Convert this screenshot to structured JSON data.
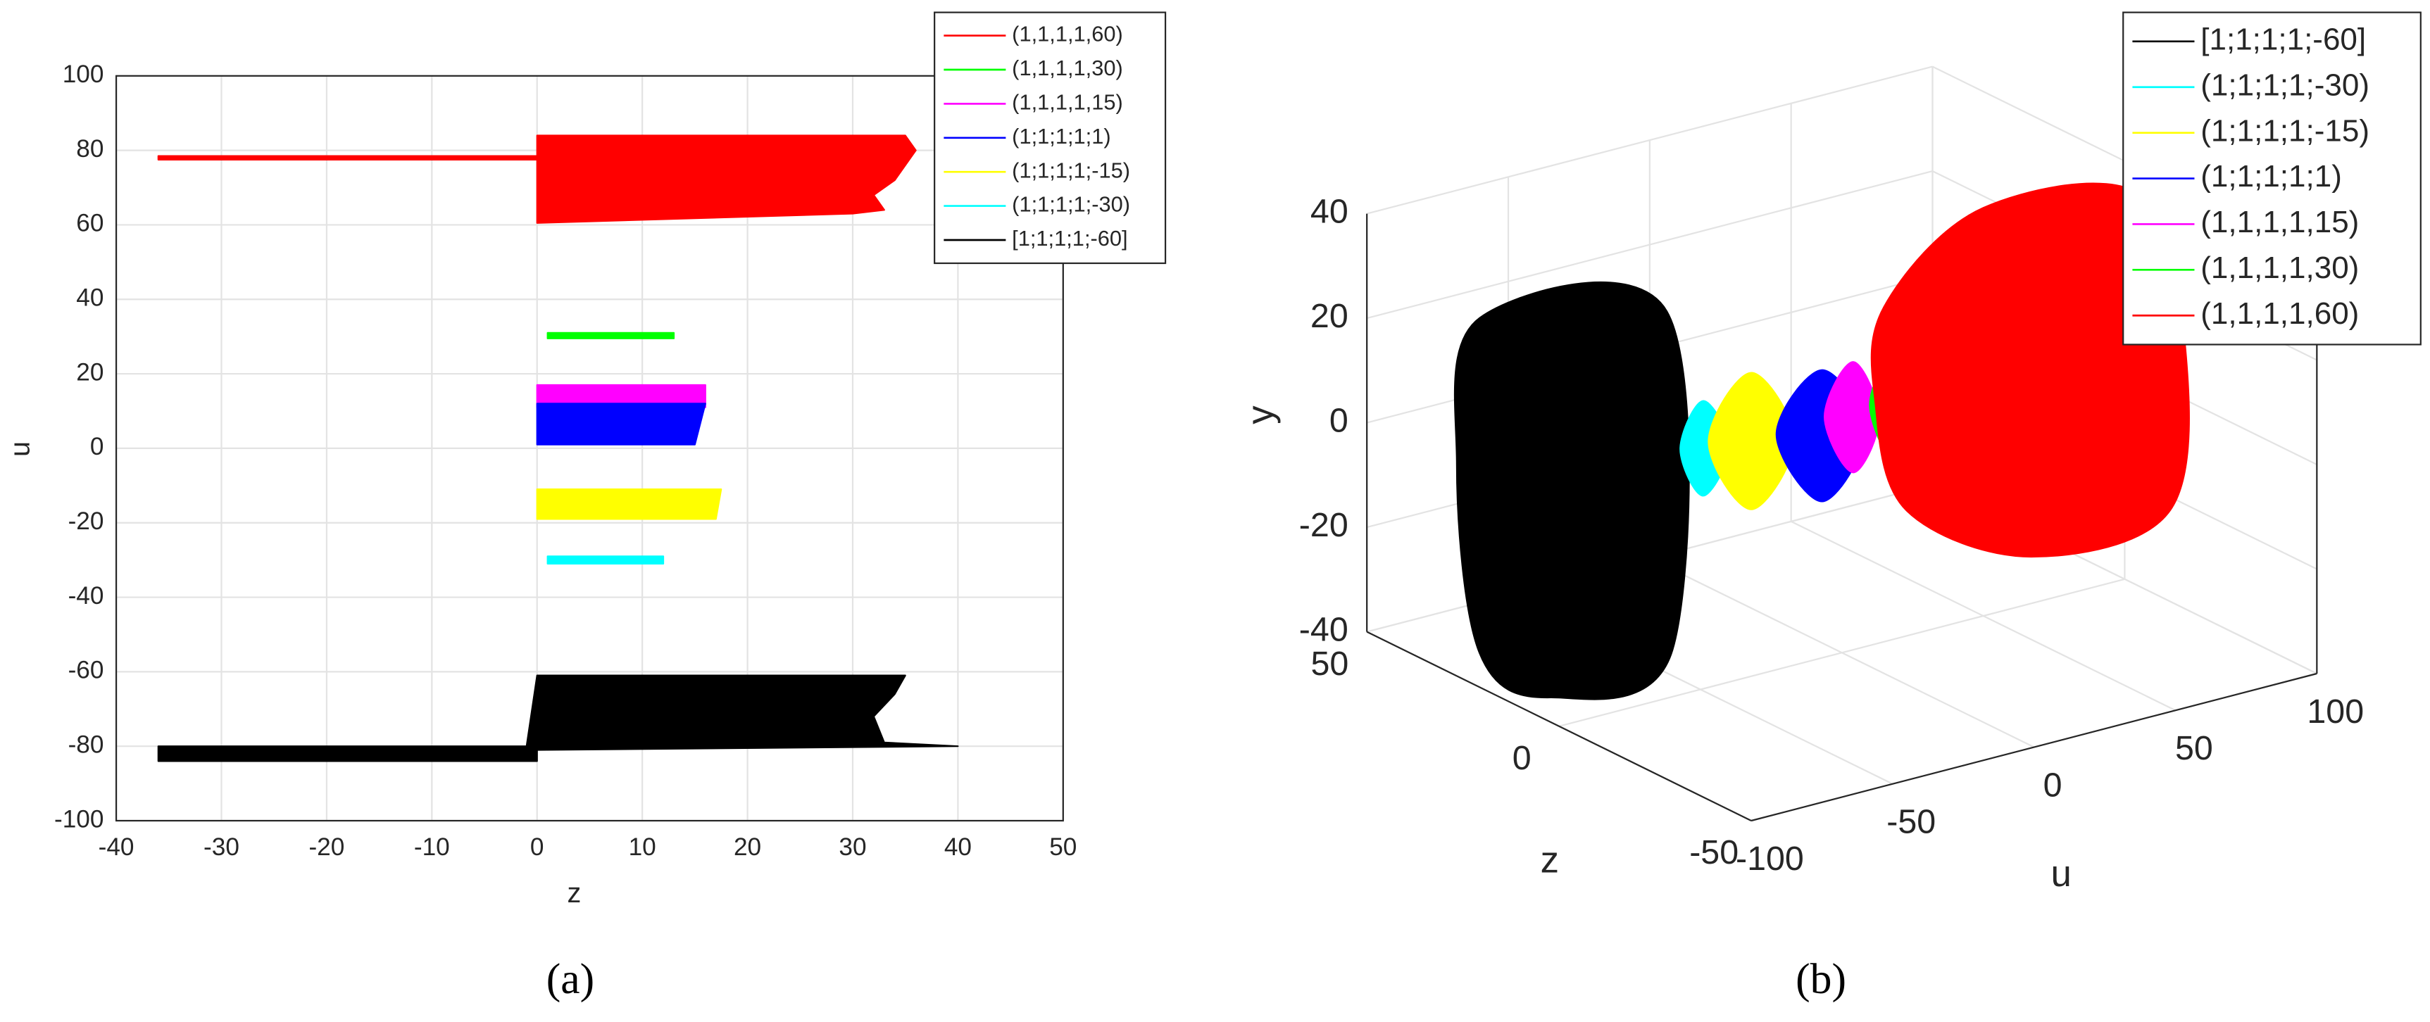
{
  "chart_data": [
    {
      "type": "line",
      "fill": true,
      "grid": true,
      "caption": "(a)",
      "xlabel": "z",
      "ylabel": "u",
      "xlim": [
        -40,
        50
      ],
      "xticks": [
        -40,
        -30,
        -20,
        -10,
        0,
        10,
        20,
        30,
        40,
        50
      ],
      "ylim": [
        -100,
        100
      ],
      "yticks": [
        -100,
        -80,
        -60,
        -40,
        -20,
        0,
        20,
        40,
        60,
        80,
        100
      ],
      "legend": "upper right",
      "series": [
        {
          "name": "(1,1,1,1,60)",
          "color": "#ff0000",
          "x": [
            -36,
            0,
            0,
            35,
            36,
            34,
            32,
            33,
            30,
            0,
            0,
            -36
          ],
          "values": [
            78.5,
            78.5,
            84,
            84,
            80,
            72,
            68,
            64,
            63,
            60.5,
            77.5,
            77.5
          ]
        },
        {
          "name": "(1,1,1,1,30)",
          "color": "#00ff00",
          "x": [
            1,
            13,
            13,
            1
          ],
          "values": [
            31,
            31,
            29.5,
            29.5
          ]
        },
        {
          "name": "(1,1,1,1,15)",
          "color": "#ff00ff",
          "x": [
            0,
            16,
            16,
            0
          ],
          "values": [
            17,
            17,
            11,
            11
          ]
        },
        {
          "name": "(1;1;1;1;1)",
          "color": "#0000ff",
          "x": [
            0,
            16,
            15,
            0
          ],
          "values": [
            12,
            12,
            1,
            1
          ]
        },
        {
          "name": "(1;1;1;1;-15)",
          "color": "#ffff00",
          "x": [
            0,
            17.5,
            17,
            0
          ],
          "values": [
            -11,
            -11,
            -19,
            -19
          ]
        },
        {
          "name": "(1;1;1;1;-30)",
          "color": "#00ffff",
          "x": [
            1,
            12,
            12,
            1
          ],
          "values": [
            -29,
            -29,
            -31,
            -31
          ]
        },
        {
          "name": "[1;1;1;1;-60]",
          "color": "#000000",
          "x": [
            -36,
            -1,
            0,
            35,
            34,
            32,
            33,
            40,
            0,
            0,
            -36
          ],
          "values": [
            -80,
            -80,
            -61,
            -61,
            -66,
            -72,
            -79,
            -80,
            -81,
            -84,
            -84
          ]
        }
      ]
    },
    {
      "type": "line3d",
      "smooth": true,
      "grid": true,
      "caption": "(b)",
      "xlabel": "u",
      "ylabel": "y",
      "zlabel": "z",
      "xlim": [
        -100,
        100
      ],
      "xticks": [
        -100,
        -50,
        0,
        50,
        100
      ],
      "ylim": [
        -40,
        40
      ],
      "yticks": [
        -40,
        -20,
        0,
        20,
        40
      ],
      "zlim": [
        -50,
        50
      ],
      "zticks": [
        -50,
        0,
        50
      ],
      "legend": "upper right",
      "series": [
        {
          "name": "[1;1;1;1;-60]",
          "color": "#000000",
          "x": [
            -128,
            -62,
            -60,
            -103,
            -128,
            -136
          ],
          "z": [
            0,
            0,
            0,
            0,
            0,
            0
          ],
          "y": [
            42,
            34,
            -31,
            -34,
            -22,
            15
          ]
        },
        {
          "name": "(1;1;1;1;-30)",
          "color": "#00ffff",
          "x": [
            -49,
            -40,
            -49,
            -57
          ],
          "z": [
            0,
            0,
            0,
            0
          ],
          "y": [
            15,
            5,
            -3,
            7
          ]
        },
        {
          "name": "(1;1;1;1;-15)",
          "color": "#ffff00",
          "x": [
            -32,
            -17,
            -32,
            -47
          ],
          "z": [
            0,
            0,
            0,
            0
          ],
          "y": [
            18,
            3,
            -8,
            7
          ]
        },
        {
          "name": "(1;1;1;1;1)",
          "color": "#0000ff",
          "x": [
            -7,
            8,
            -7,
            -23
          ],
          "z": [
            0,
            0,
            0,
            0
          ],
          "y": [
            15,
            1,
            -10,
            5
          ]
        },
        {
          "name": "(1,1,1,1,15)",
          "color": "#ff00ff",
          "x": [
            4,
            13,
            4,
            -6
          ],
          "z": [
            0,
            0,
            0,
            0
          ],
          "y": [
            15,
            3,
            -6,
            6
          ]
        },
        {
          "name": "(1,1,1,1,30)",
          "color": "#00ff00",
          "x": [
            18,
            27,
            18,
            10
          ],
          "z": [
            0,
            0,
            0,
            0
          ],
          "y": [
            14,
            4,
            -5,
            6
          ]
        },
        {
          "name": "(1,1,1,1,60)",
          "color": "#ff0000",
          "x": [
            15,
            50,
            105,
            121,
            116,
            67,
            23,
            12
          ],
          "z": [
            0,
            0,
            0,
            0,
            0,
            0,
            0,
            0
          ],
          "y": [
            24,
            38,
            33,
            3,
            -29,
            -31,
            -16,
            6
          ]
        }
      ]
    }
  ]
}
